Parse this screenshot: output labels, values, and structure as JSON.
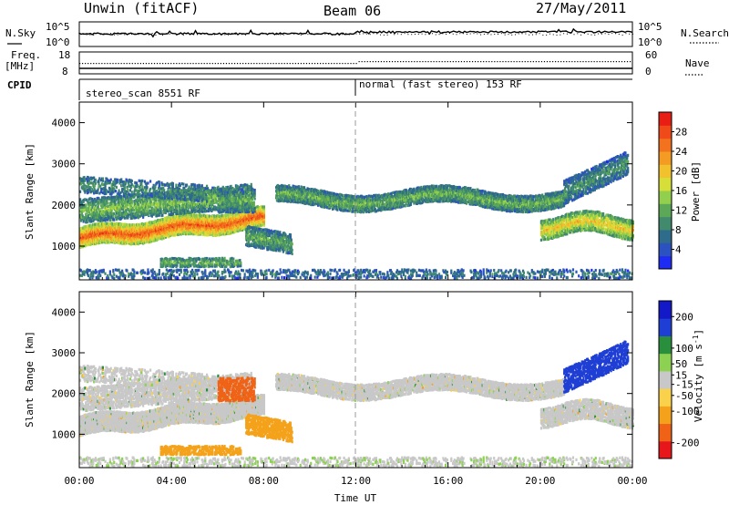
{
  "header": {
    "station": "Unwin (fitACF)",
    "beam": "Beam 06",
    "date": "27/May/2011"
  },
  "side_labels": {
    "nsky": "N.Sky",
    "nsearch": "N.Search",
    "freq": "Freq.",
    "mhz": "[MHz]",
    "nave": "Nave",
    "cpid": "CPID"
  },
  "aux_axes": {
    "nsky_left_ticks": [
      "10^5",
      "10^0"
    ],
    "nsearch_right_ticks": [
      "10^5",
      "10^0"
    ],
    "freq_left_ticks": [
      "18",
      "8"
    ],
    "nave_right_ticks": [
      "60",
      "0"
    ]
  },
  "cpid": {
    "modes": [
      {
        "label": "stereo_scan 8551 RF",
        "start_hour": 0
      },
      {
        "label": "normal (fast stereo) 153 RF",
        "start_hour": 12.0
      }
    ]
  },
  "chart_data": [
    {
      "type": "heatmap",
      "title": "",
      "xlabel": "",
      "ylabel": "Slant Range [km]",
      "xlim": [
        0,
        24
      ],
      "ylim": [
        180,
        4500
      ],
      "x_ticks": [
        0,
        4,
        8,
        12,
        16,
        20,
        24
      ],
      "y_ticks": [
        1000,
        2000,
        3000,
        4000
      ],
      "colorbar": {
        "label": "Power [dB]",
        "range": [
          0,
          32
        ],
        "ticks": [
          4,
          8,
          12,
          16,
          20,
          24,
          28
        ],
        "colors": [
          "#1e2bf2",
          "#2c52c0",
          "#2f6b8a",
          "#418a6e",
          "#5ca858",
          "#92cf4d",
          "#d6de3a",
          "#f2c22e",
          "#f39b23",
          "#f2721d",
          "#ef4a18",
          "#e81e14"
        ]
      }
    },
    {
      "type": "heatmap",
      "title": "",
      "xlabel": "Time UT",
      "ylabel": "Slant Range [km]",
      "xlim": [
        0,
        24
      ],
      "ylim": [
        180,
        4500
      ],
      "x_ticks": [
        0,
        4,
        8,
        12,
        16,
        20,
        24
      ],
      "x_tick_labels": [
        "00:00",
        "04:00",
        "08:00",
        "12:00",
        "16:00",
        "20:00",
        "00:00"
      ],
      "y_ticks": [
        1000,
        2000,
        3000,
        4000
      ],
      "colorbar": {
        "label": "Velocity [m s^-1]",
        "range": [
          -250,
          250
        ],
        "ticks": [
          -200,
          -100,
          -50,
          -15,
          15,
          50,
          100,
          200
        ],
        "colors": [
          "#e6161b",
          "#f06316",
          "#f4a21b",
          "#fad14a",
          "#c8c8c8",
          "#8dd153",
          "#2a8f3c",
          "#1f3fd4",
          "#1419c8"
        ]
      }
    }
  ]
}
